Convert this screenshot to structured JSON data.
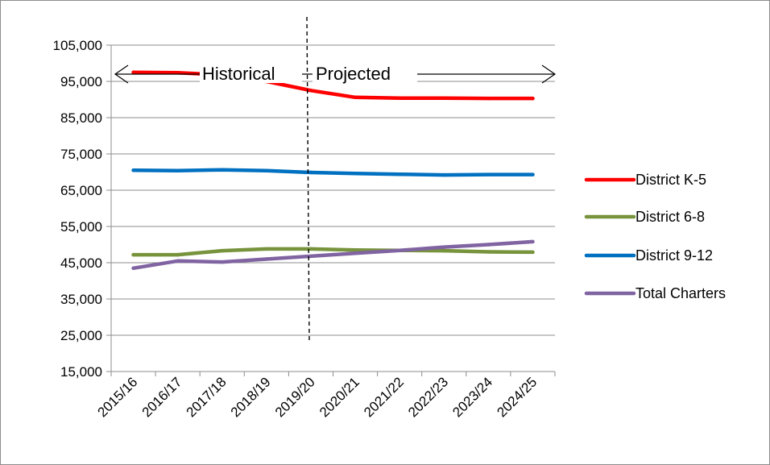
{
  "chart_data": {
    "type": "line",
    "categories": [
      "2015/16",
      "2016/17",
      "2017/18",
      "2018/19",
      "2019/20",
      "2020/21",
      "2021/22",
      "2022/23",
      "2023/24",
      "2024/25"
    ],
    "ylim": [
      15000,
      105000
    ],
    "y_ticks": [
      "15,000",
      "25,000",
      "35,000",
      "45,000",
      "55,000",
      "65,000",
      "75,000",
      "85,000",
      "95,000",
      "105,000"
    ],
    "grid": "horizontal",
    "legend_position": "right",
    "divider_after_category": "2019/20",
    "annotations": {
      "left": "Historical",
      "right": "Projected"
    },
    "series": [
      {
        "name": "District K-5",
        "color": "#ff0000",
        "values": [
          97500,
          97400,
          96800,
          95000,
          92500,
          90600,
          90400,
          90400,
          90300,
          90300
        ]
      },
      {
        "name": "District 6-8",
        "color": "#77933c",
        "values": [
          47200,
          47200,
          48300,
          48800,
          48800,
          48500,
          48400,
          48300,
          48000,
          47900
        ]
      },
      {
        "name": "District 9-12",
        "color": "#0070c0",
        "values": [
          70500,
          70400,
          70600,
          70400,
          69900,
          69600,
          69400,
          69200,
          69300,
          69300
        ]
      },
      {
        "name": "Total Charters",
        "color": "#8064a2",
        "values": [
          43500,
          45500,
          45200,
          46000,
          46800,
          47600,
          48400,
          49300,
          50000,
          50800
        ]
      }
    ]
  }
}
